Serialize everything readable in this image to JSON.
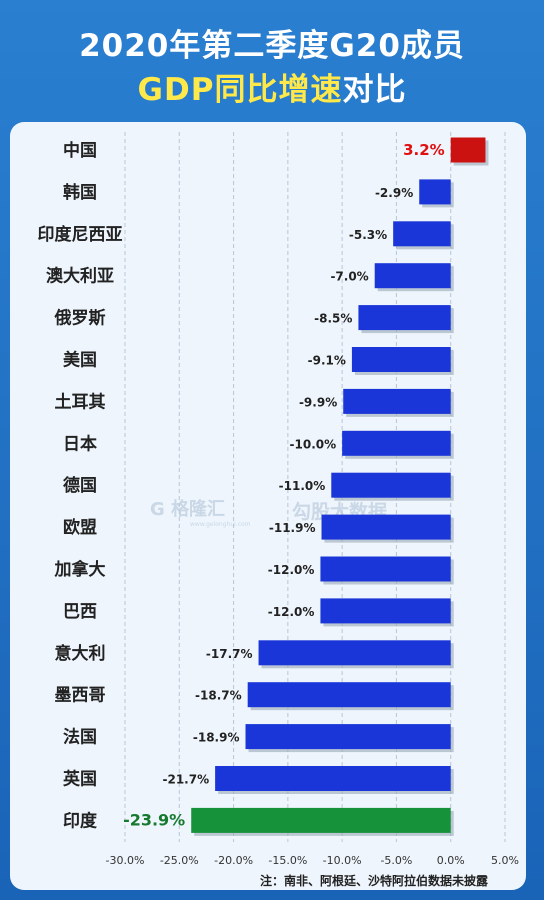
{
  "header": {
    "line1": "2020年第二季度G20成员",
    "line2_yellow": "GDP同比增速",
    "line2_white": "对比"
  },
  "note": "注：南非、阿根廷、沙特阿拉伯数据未披露",
  "watermark": {
    "brand": "格隆汇",
    "brand_url": "www.gelonghui.com",
    "brand2": "勾股大数据"
  },
  "colors": {
    "positive": "#cc1111",
    "negative": "#1a36d8",
    "highlight": "#16923a",
    "positive_label": "#e01010",
    "highlight_label": "#157a2e"
  },
  "chart_data": {
    "type": "bar",
    "orientation": "horizontal",
    "categories": [
      "中国",
      "韩国",
      "印度尼西亚",
      "澳大利亚",
      "俄罗斯",
      "美国",
      "土耳其",
      "日本",
      "德国",
      "欧盟",
      "加拿大",
      "巴西",
      "意大利",
      "墨西哥",
      "法国",
      "英国",
      "印度"
    ],
    "values": [
      3.2,
      -2.9,
      -5.3,
      -7.0,
      -8.5,
      -9.1,
      -9.9,
      -10.0,
      -11.0,
      -11.9,
      -12.0,
      -12.0,
      -17.7,
      -18.7,
      -18.9,
      -21.7,
      -23.9
    ],
    "labels": [
      "3.2%",
      "-2.9%",
      "-5.3%",
      "-7.0%",
      "-8.5%",
      "-9.1%",
      "-9.9%",
      "-10.0%",
      "-11.0%",
      "-11.9%",
      "-12.0%",
      "-12.0%",
      "-17.7%",
      "-18.7%",
      "-18.9%",
      "-21.7%",
      "-23.9%"
    ],
    "xticks": [
      -30,
      -25,
      -20,
      -15,
      -10,
      -5,
      0,
      5
    ],
    "xtick_labels": [
      "-30.0%",
      "-25.0%",
      "-20.0%",
      "-15.0%",
      "-10.0%",
      "-5.0%",
      "0.0%",
      "5.0%"
    ],
    "xlim": [
      -30,
      5
    ],
    "grid": "vertical dashed",
    "title": "2020年第二季度G20成员GDP同比增速对比"
  }
}
